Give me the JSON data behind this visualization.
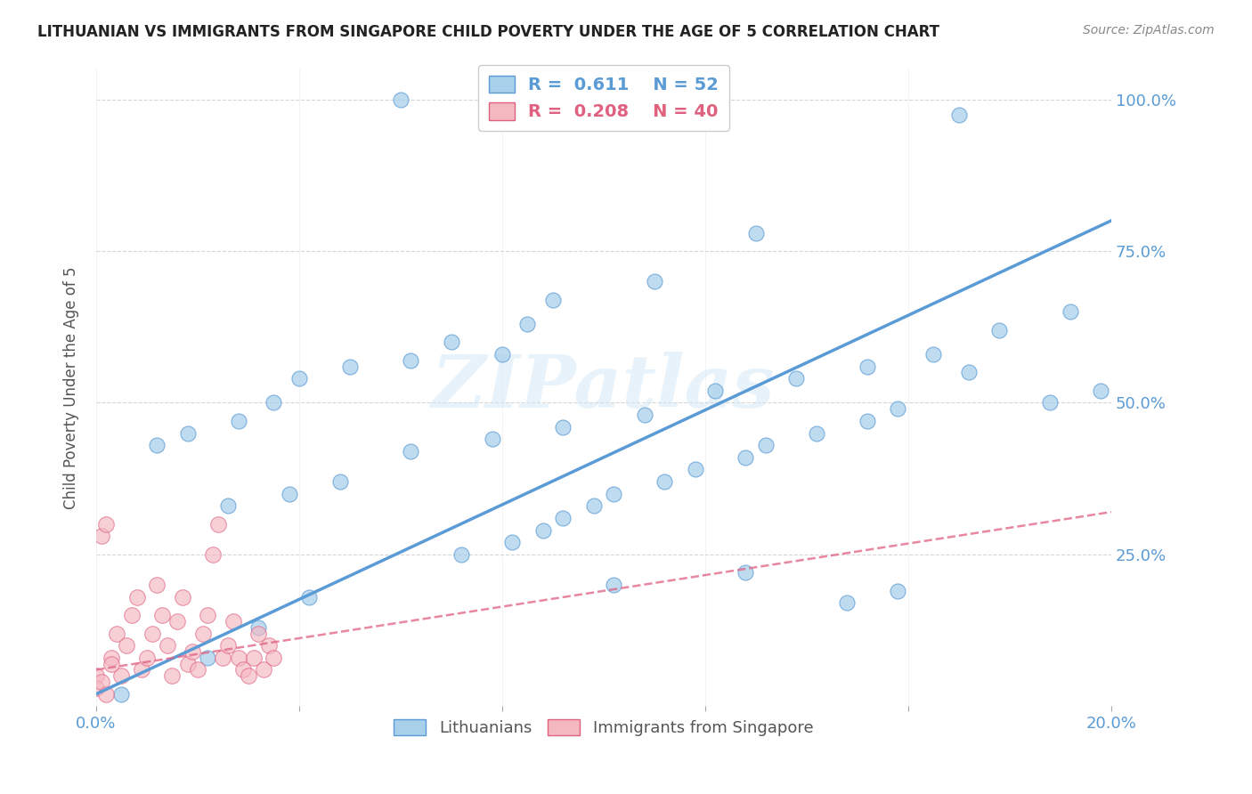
{
  "title": "LITHUANIAN VS IMMIGRANTS FROM SINGAPORE CHILD POVERTY UNDER THE AGE OF 5 CORRELATION CHART",
  "source": "Source: ZipAtlas.com",
  "ylabel": "Child Poverty Under the Age of 5",
  "xlim": [
    0.0,
    0.2
  ],
  "ylim": [
    0.0,
    1.05
  ],
  "ytick_positions": [
    0.0,
    0.25,
    0.5,
    0.75,
    1.0
  ],
  "ytick_labels": [
    "",
    "25.0%",
    "50.0%",
    "75.0%",
    "100.0%"
  ],
  "xtick_positions": [
    0.0,
    0.04,
    0.08,
    0.12,
    0.16,
    0.2
  ],
  "xtick_labels": [
    "0.0%",
    "",
    "",
    "",
    "",
    "20.0%"
  ],
  "background_color": "#ffffff",
  "watermark": "ZIPatlas",
  "blue_color": "#a8d0eb",
  "blue_edge": "#5b9bd5",
  "pink_color": "#f4b8c1",
  "pink_edge": "#e06080",
  "blue_R": "0.611",
  "blue_N": "52",
  "pink_R": "0.208",
  "pink_N": "40",
  "grid_color": "#cccccc",
  "title_color": "#222222",
  "axis_color": "#5b9bd5",
  "legend_label_blue": "Lithuanians",
  "legend_label_pink": "Immigrants from Singapore",
  "blue_line_x": [
    0.0,
    0.2
  ],
  "blue_line_y": [
    0.02,
    0.8
  ],
  "pink_line_x": [
    0.0,
    0.2
  ],
  "pink_line_y": [
    0.06,
    0.32
  ],
  "blue_scatter_x": [
    0.06,
    0.17,
    0.13,
    0.11,
    0.09,
    0.085,
    0.08,
    0.07,
    0.062,
    0.05,
    0.04,
    0.035,
    0.028,
    0.018,
    0.012,
    0.026,
    0.038,
    0.048,
    0.062,
    0.078,
    0.092,
    0.108,
    0.122,
    0.138,
    0.152,
    0.165,
    0.178,
    0.192,
    0.198,
    0.005,
    0.072,
    0.082,
    0.088,
    0.092,
    0.098,
    0.102,
    0.112,
    0.118,
    0.128,
    0.132,
    0.142,
    0.152,
    0.158,
    0.148,
    0.158,
    0.022,
    0.032,
    0.042,
    0.102,
    0.128,
    0.172,
    0.188
  ],
  "blue_scatter_y": [
    1.0,
    0.975,
    0.78,
    0.7,
    0.67,
    0.63,
    0.58,
    0.6,
    0.57,
    0.56,
    0.54,
    0.5,
    0.47,
    0.45,
    0.43,
    0.33,
    0.35,
    0.37,
    0.42,
    0.44,
    0.46,
    0.48,
    0.52,
    0.54,
    0.56,
    0.58,
    0.62,
    0.65,
    0.52,
    0.02,
    0.25,
    0.27,
    0.29,
    0.31,
    0.33,
    0.35,
    0.37,
    0.39,
    0.41,
    0.43,
    0.45,
    0.47,
    0.49,
    0.17,
    0.19,
    0.08,
    0.13,
    0.18,
    0.2,
    0.22,
    0.55,
    0.5
  ],
  "pink_scatter_x": [
    0.0,
    0.001,
    0.002,
    0.003,
    0.004,
    0.005,
    0.006,
    0.007,
    0.008,
    0.009,
    0.01,
    0.011,
    0.012,
    0.013,
    0.014,
    0.015,
    0.016,
    0.017,
    0.018,
    0.019,
    0.02,
    0.021,
    0.022,
    0.023,
    0.024,
    0.025,
    0.026,
    0.027,
    0.028,
    0.029,
    0.03,
    0.031,
    0.032,
    0.033,
    0.034,
    0.035,
    0.0,
    0.001,
    0.002,
    0.003
  ],
  "pink_scatter_y": [
    0.05,
    0.28,
    0.3,
    0.08,
    0.12,
    0.05,
    0.1,
    0.15,
    0.18,
    0.06,
    0.08,
    0.12,
    0.2,
    0.15,
    0.1,
    0.05,
    0.14,
    0.18,
    0.07,
    0.09,
    0.06,
    0.12,
    0.15,
    0.25,
    0.3,
    0.08,
    0.1,
    0.14,
    0.08,
    0.06,
    0.05,
    0.08,
    0.12,
    0.06,
    0.1,
    0.08,
    0.03,
    0.04,
    0.02,
    0.07
  ]
}
